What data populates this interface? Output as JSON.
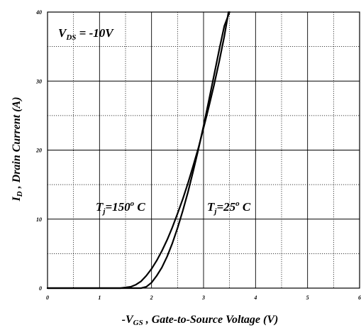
{
  "chart_data": {
    "type": "line",
    "xlabel": {
      "prefix": "-V",
      "sub": "GS",
      "rest": " , Gate-to-Source Voltage (V)"
    },
    "ylabel": {
      "main": "I",
      "sub": "D",
      "rest": " , Drain Current (A)"
    },
    "xlim": [
      0,
      6
    ],
    "ylim": [
      0,
      40
    ],
    "x_ticks": [
      "0",
      "1",
      "2",
      "3",
      "4",
      "5",
      "6"
    ],
    "y_ticks": [
      "0",
      "10",
      "20",
      "30",
      "40"
    ],
    "grid": true,
    "annotations": {
      "vds": {
        "main": "V",
        "sub": "DS",
        "rest": " = -10V"
      },
      "t150": {
        "main": "T",
        "sub": "j",
        "rest": "=150",
        "sup": "o",
        "tail": " C"
      },
      "t25": {
        "main": "T",
        "sub": "j",
        "rest": "=25",
        "sup": "o",
        "tail": " C"
      }
    },
    "series": [
      {
        "name": "Tj=150°C",
        "x": [
          1.4,
          1.6,
          1.7,
          1.8,
          1.9,
          2.0,
          2.1,
          2.2,
          2.3,
          2.4,
          2.5,
          2.6,
          2.7,
          2.8,
          2.9,
          3.0,
          3.1,
          3.2,
          3.3,
          3.4,
          3.48
        ],
        "y": [
          0,
          0.2,
          0.5,
          1.0,
          1.8,
          2.8,
          4.0,
          5.4,
          7.0,
          8.8,
          10.8,
          12.9,
          15.2,
          17.7,
          20.3,
          23.2,
          26.2,
          29.4,
          32.8,
          36.5,
          40
        ]
      },
      {
        "name": "Tj=25°C",
        "x": [
          1.8,
          1.9,
          2.0,
          2.1,
          2.2,
          2.3,
          2.4,
          2.5,
          2.6,
          2.7,
          2.8,
          2.9,
          3.0,
          3.1,
          3.2,
          3.3,
          3.4,
          3.5
        ],
        "y": [
          0,
          0.2,
          0.8,
          1.8,
          3.0,
          4.6,
          6.5,
          8.7,
          11.2,
          13.9,
          16.9,
          20.1,
          23.5,
          27.1,
          30.8,
          34.5,
          38.0,
          40
        ]
      }
    ]
  }
}
